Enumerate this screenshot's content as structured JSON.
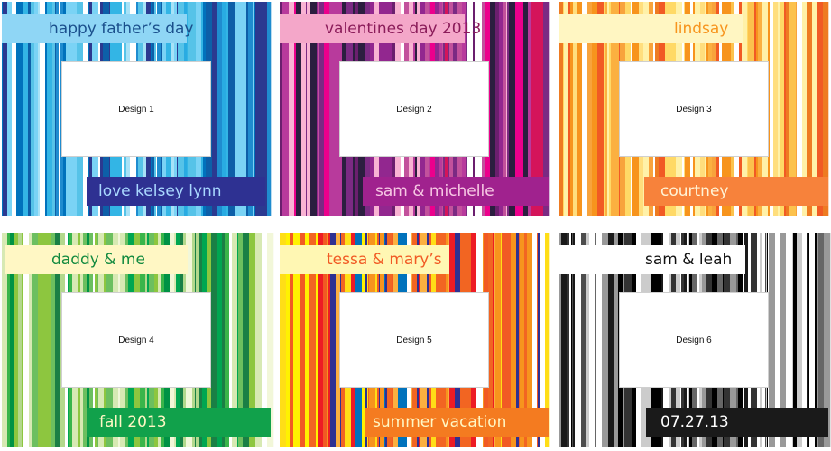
{
  "cards": [
    {
      "design_label": "Design 1",
      "top_text": "happy father’s day",
      "bottom_text": "love kelsey lynn",
      "colors": {
        "top_bg": "#8fd6f5",
        "top_fg": "#1a4f8c",
        "bottom_bg": "#2e3192",
        "bottom_fg": "#a9d8ff",
        "stripes": [
          "#0d5fa8",
          "#33b5e5",
          "#7ad3f5",
          "#1f8ccf",
          "#ffffff",
          "#2b3990",
          "#56c3e8",
          "#0072bc",
          "#a8e2f7",
          "#29abe2"
        ]
      }
    },
    {
      "design_label": "Design 2",
      "top_text": "valentines day 2013",
      "bottom_text": "sam & michelle",
      "colors": {
        "top_bg": "#f4a7c9",
        "top_fg": "#8b1c5a",
        "bottom_bg": "#a0228e",
        "bottom_fg": "#f7c8e4",
        "stripes": [
          "#92278f",
          "#ec008c",
          "#6b1f6e",
          "#c2519c",
          "#f9b3d3",
          "#2b1e3f",
          "#d4145a",
          "#b83a9c",
          "#ffffff",
          "#7b2a83"
        ]
      }
    },
    {
      "design_label": "Design 3",
      "top_text": "lindsay",
      "bottom_text": "courtney",
      "colors": {
        "top_bg": "#fff6c2",
        "top_fg": "#f7941d",
        "bottom_bg": "#f7823b",
        "bottom_fg": "#fff4d6",
        "stripes": [
          "#f7941d",
          "#fbb040",
          "#ffde7d",
          "#f15a24",
          "#ffffff",
          "#fcc24d",
          "#f8a33c",
          "#fff1a8",
          "#ee7b22",
          "#ffd966"
        ]
      }
    },
    {
      "design_label": "Design 4",
      "top_text": "daddy & me",
      "bottom_text": "fall 2013",
      "colors": {
        "top_bg": "#fff7c4",
        "top_fg": "#128a3f",
        "bottom_bg": "#11a14b",
        "bottom_fg": "#fff7c4",
        "stripes": [
          "#009245",
          "#39b54a",
          "#8dc63f",
          "#d7e9b3",
          "#ffffff",
          "#00a651",
          "#1a7f45",
          "#b3d88c",
          "#6cbf5f",
          "#f2f7d9"
        ]
      }
    },
    {
      "design_label": "Design 5",
      "top_text": "tessa & mary’s",
      "bottom_text": "summer vacation",
      "colors": {
        "top_bg": "#fff7b3",
        "top_fg": "#f15a24",
        "bottom_bg": "#f47b20",
        "bottom_fg": "#fff7c4",
        "stripes": [
          "#ed1c24",
          "#f7941d",
          "#fff200",
          "#f15a24",
          "#ffffff",
          "#fbb040",
          "#0072bc",
          "#2e3192",
          "#ffde17",
          "#f26522"
        ]
      }
    },
    {
      "design_label": "Design 6",
      "top_text": "sam & leah",
      "bottom_text": "07.27.13",
      "colors": {
        "top_bg": "#ffffff",
        "top_fg": "#111111",
        "bottom_bg": "#1a1a1a",
        "bottom_fg": "#ffffff",
        "stripes": [
          "#000000",
          "#ffffff",
          "#4d4d4d",
          "#999999",
          "#1a1a1a",
          "#cccccc",
          "#333333",
          "#ffffff",
          "#666666",
          "#000000"
        ]
      }
    }
  ]
}
